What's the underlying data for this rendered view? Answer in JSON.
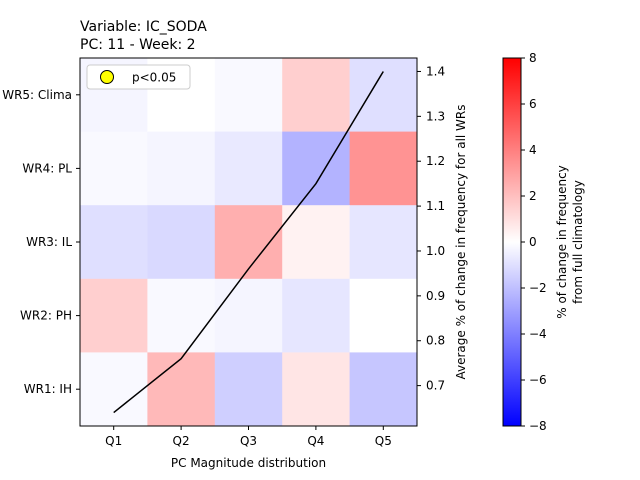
{
  "chart_data": {
    "type": "heatmap",
    "title_line1": "Variable: IC_SODA",
    "title_line2": "PC: 11 - Week: 2",
    "xlabel": "PC Magnitude distribution",
    "ylabel_right": "Average % of change in frequency for all WRs",
    "colorbar_label_line1": "% of change in frequency",
    "colorbar_label_line2": "from full climatology",
    "colorbar_range": [
      -8,
      8
    ],
    "colorbar_ticks": [
      "8",
      "6",
      "4",
      "2",
      "0",
      "−2",
      "−4",
      "−6",
      "−8"
    ],
    "colormap": {
      "low": "#0000ff",
      "mid": "#ffffff",
      "high": "#ff0000"
    },
    "columns": [
      "Q1",
      "Q2",
      "Q3",
      "Q4",
      "Q5"
    ],
    "rows": [
      "WR5: Clima",
      "WR4: PL",
      "WR3: IL",
      "WR2: PH",
      "WR1: IH"
    ],
    "values": [
      [
        -0.3,
        0.0,
        -0.2,
        1.5,
        -1.0
      ],
      [
        -0.2,
        -0.3,
        -0.7,
        -2.4,
        3.4
      ],
      [
        -1.0,
        -1.2,
        2.5,
        0.4,
        -0.8
      ],
      [
        1.5,
        -0.2,
        -0.3,
        -0.8,
        0.0
      ],
      [
        -0.2,
        2.2,
        -1.5,
        0.8,
        -1.8
      ]
    ],
    "line_series": {
      "x": [
        "Q1",
        "Q2",
        "Q3",
        "Q4",
        "Q5"
      ],
      "y": [
        0.64,
        0.76,
        0.96,
        1.15,
        1.4
      ],
      "color": "#000000"
    },
    "right_axis_range": [
      0.61,
      1.43
    ],
    "right_axis_ticks": [
      "0.7",
      "0.8",
      "0.9",
      "1.0",
      "1.1",
      "1.2",
      "1.3",
      "1.4"
    ],
    "legend": {
      "label": "p<0.05",
      "marker_color": "#ffff00",
      "position": "top-left"
    }
  }
}
